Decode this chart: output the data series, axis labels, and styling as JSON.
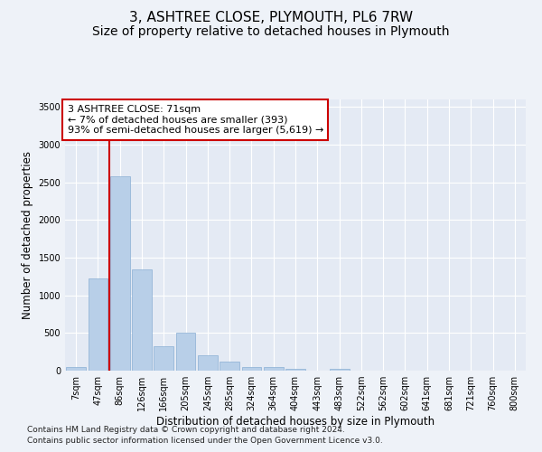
{
  "title": "3, ASHTREE CLOSE, PLYMOUTH, PL6 7RW",
  "subtitle": "Size of property relative to detached houses in Plymouth",
  "xlabel": "Distribution of detached houses by size in Plymouth",
  "ylabel": "Number of detached properties",
  "bar_labels": [
    "7sqm",
    "47sqm",
    "86sqm",
    "126sqm",
    "166sqm",
    "205sqm",
    "245sqm",
    "285sqm",
    "324sqm",
    "364sqm",
    "404sqm",
    "443sqm",
    "483sqm",
    "522sqm",
    "562sqm",
    "602sqm",
    "641sqm",
    "681sqm",
    "721sqm",
    "760sqm",
    "800sqm"
  ],
  "bar_heights": [
    50,
    1220,
    2580,
    1340,
    330,
    500,
    200,
    120,
    50,
    50,
    30,
    0,
    30,
    0,
    0,
    0,
    0,
    0,
    0,
    0,
    0
  ],
  "bar_color": "#b8cfe8",
  "bar_edge_color": "#8aafd4",
  "vline_x": 1.5,
  "vline_color": "#cc0000",
  "annotation_text": "3 ASHTREE CLOSE: 71sqm\n← 7% of detached houses are smaller (393)\n93% of semi-detached houses are larger (5,619) →",
  "annotation_box_color": "#ffffff",
  "annotation_box_edge_color": "#cc0000",
  "ylim": [
    0,
    3600
  ],
  "yticks": [
    0,
    500,
    1000,
    1500,
    2000,
    2500,
    3000,
    3500
  ],
  "footer_line1": "Contains HM Land Registry data © Crown copyright and database right 2024.",
  "footer_line2": "Contains public sector information licensed under the Open Government Licence v3.0.",
  "bg_color": "#eef2f8",
  "plot_bg_color": "#e4eaf4",
  "grid_color": "#ffffff",
  "title_fontsize": 11,
  "subtitle_fontsize": 10,
  "axis_label_fontsize": 8.5,
  "tick_fontsize": 7,
  "footer_fontsize": 6.5
}
